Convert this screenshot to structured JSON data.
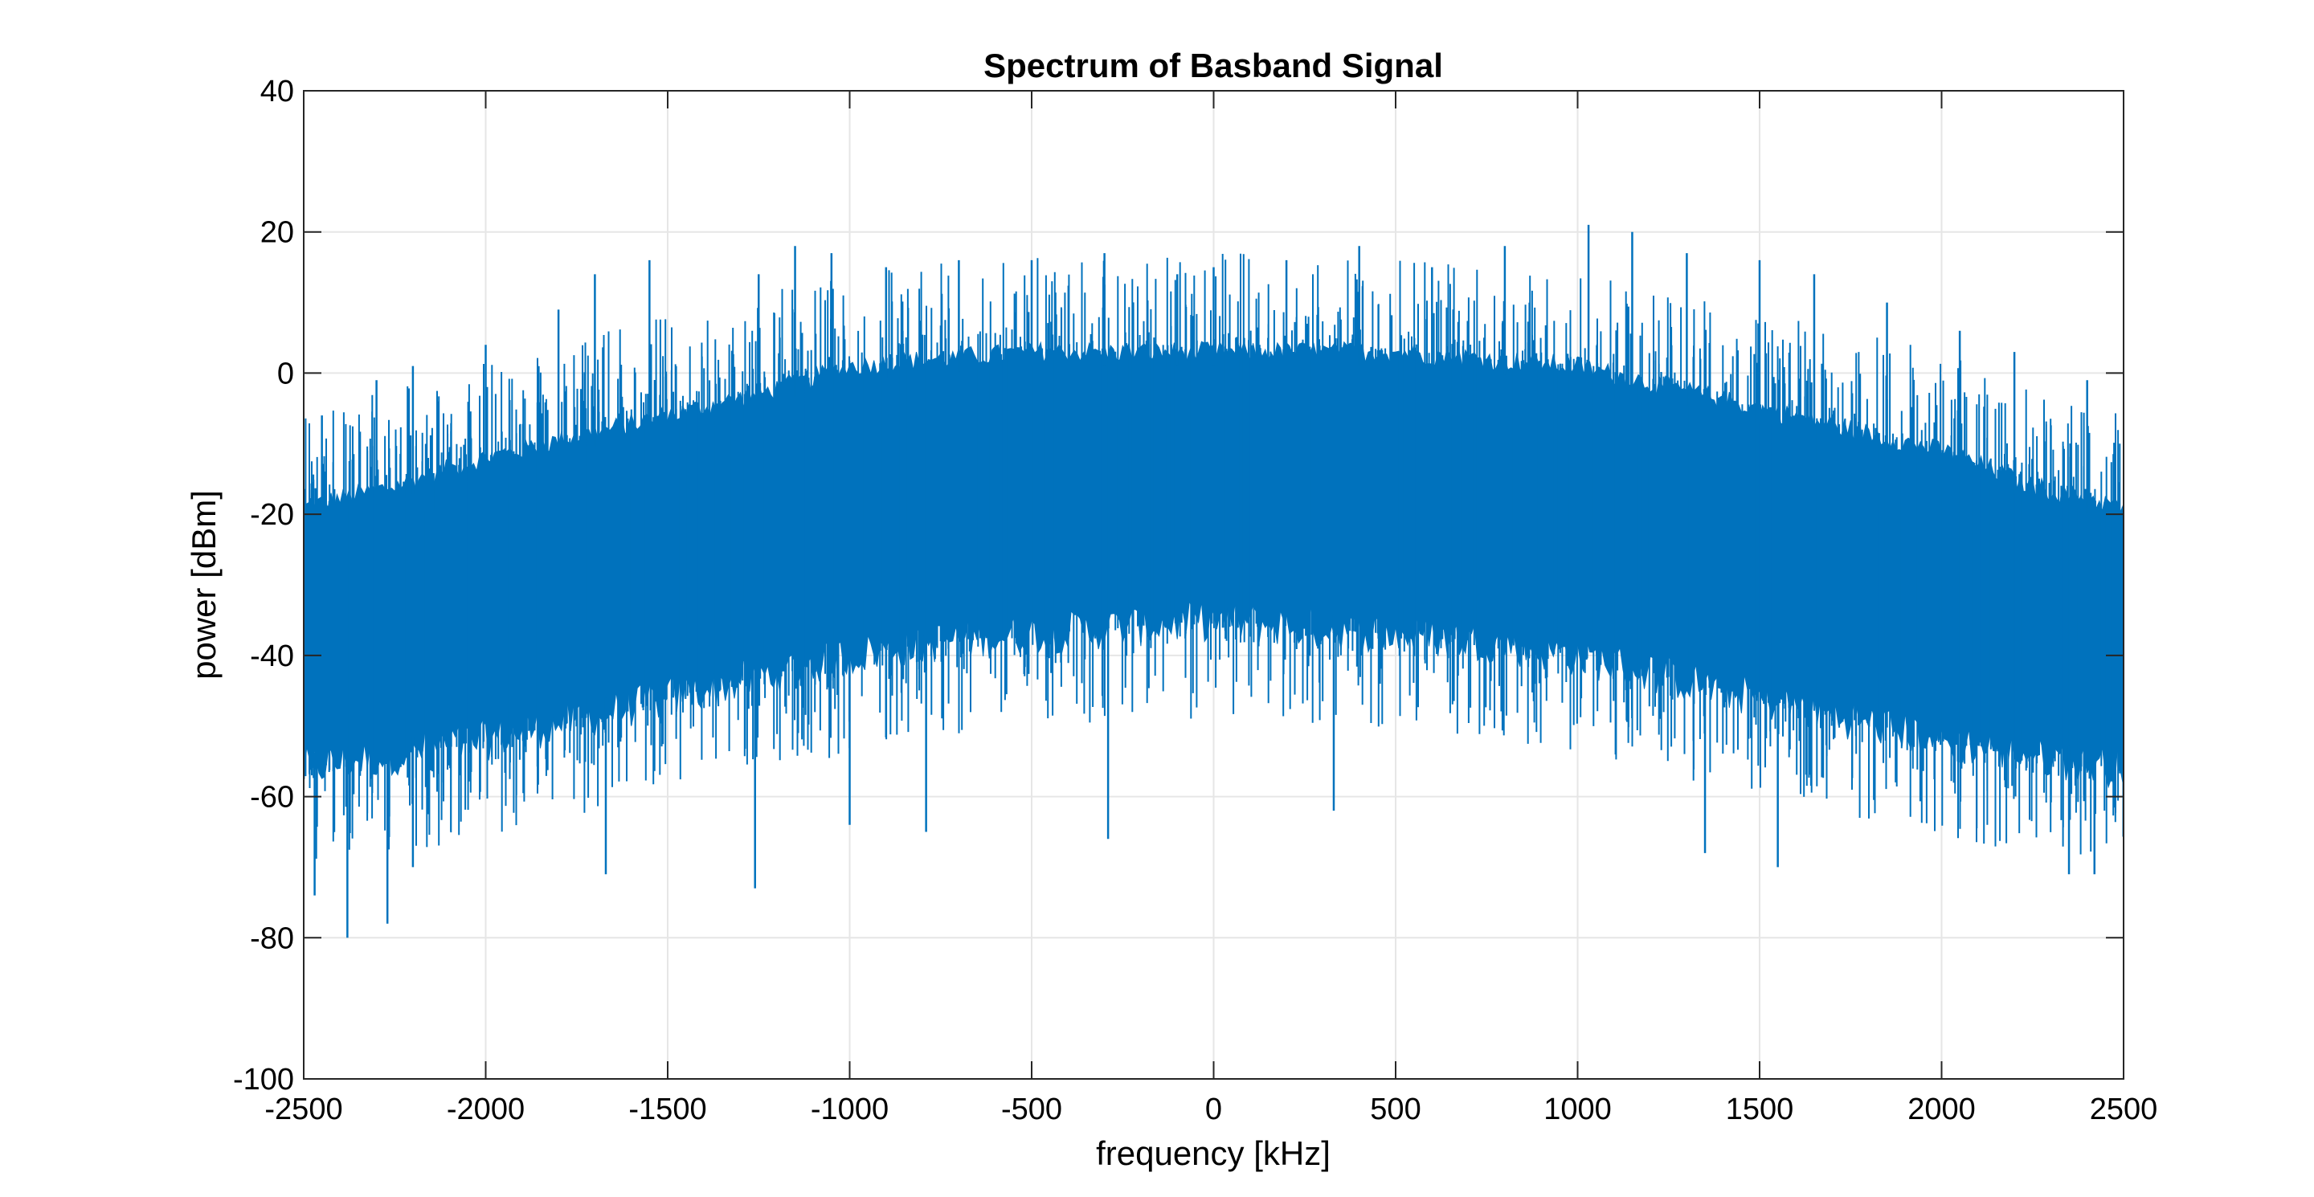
{
  "chart_data": {
    "type": "line",
    "title": "Spectrum of Basband Signal",
    "xlabel": "frequency [kHz]",
    "ylabel": "power [dBm]",
    "xlim": [
      -2500,
      2500
    ],
    "ylim": [
      -100,
      40
    ],
    "xticks": [
      -2500,
      -2000,
      -1500,
      -1000,
      -500,
      0,
      500,
      1000,
      1500,
      2000,
      2500
    ],
    "xtick_labels": [
      "-2500",
      "-2000",
      "-1500",
      "-1000",
      "-500",
      "0",
      "500",
      "1000",
      "1500",
      "2000",
      "2500"
    ],
    "yticks": [
      -100,
      -80,
      -60,
      -40,
      -20,
      0,
      20,
      40
    ],
    "ytick_labels": [
      "-100",
      "-80",
      "-60",
      "-40",
      "-20",
      "0",
      "20",
      "40"
    ],
    "grid": true,
    "legend": "none",
    "series": [
      {
        "color": "#0072BD",
        "x": [
          -2500,
          -2250,
          -2000,
          -1750,
          -1500,
          -1250,
          -1000,
          -750,
          -500,
          -250,
          0,
          250,
          500,
          750,
          1000,
          1250,
          1500,
          1750,
          2000,
          2250,
          2500
        ],
        "upper_envelope": [
          -19,
          -16,
          -12,
          -9,
          -6,
          -3,
          1,
          2,
          3,
          3,
          3,
          3,
          3,
          2,
          1,
          -2,
          -5,
          -8,
          -11,
          -16,
          -19
        ],
        "lower_envelope": [
          -56,
          -54,
          -52,
          -49,
          -46,
          -43,
          -40,
          -38,
          -37,
          -36,
          -35,
          -36,
          -37,
          -38,
          -40,
          -43,
          -46,
          -49,
          -52,
          -54,
          -56
        ],
        "peaks": [
          [
            -2450,
            -6
          ],
          [
            -2300,
            -1
          ],
          [
            -2200,
            1
          ],
          [
            -2000,
            4
          ],
          [
            -1800,
            9
          ],
          [
            -1700,
            14
          ],
          [
            -1550,
            16
          ],
          [
            -1250,
            14
          ],
          [
            -1150,
            18
          ],
          [
            -1050,
            17
          ],
          [
            -900,
            15
          ],
          [
            -700,
            16
          ],
          [
            -500,
            16
          ],
          [
            -300,
            17
          ],
          [
            -100,
            14
          ],
          [
            0,
            15
          ],
          [
            200,
            16
          ],
          [
            400,
            18
          ],
          [
            600,
            15
          ],
          [
            800,
            18
          ],
          [
            1030,
            21
          ],
          [
            1150,
            20
          ],
          [
            1300,
            17
          ],
          [
            1500,
            16
          ],
          [
            1650,
            14
          ],
          [
            1850,
            10
          ],
          [
            2050,
            6
          ],
          [
            2200,
            3
          ],
          [
            2400,
            -1
          ]
        ],
        "troughs": [
          [
            -2470,
            -74
          ],
          [
            -2380,
            -80
          ],
          [
            -2270,
            -78
          ],
          [
            -2200,
            -70
          ],
          [
            -1670,
            -71
          ],
          [
            -1260,
            -73
          ],
          [
            -1000,
            -64
          ],
          [
            -790,
            -65
          ],
          [
            -290,
            -66
          ],
          [
            330,
            -62
          ],
          [
            1350,
            -68
          ],
          [
            1550,
            -70
          ],
          [
            2350,
            -71
          ],
          [
            2420,
            -71
          ]
        ]
      }
    ]
  }
}
